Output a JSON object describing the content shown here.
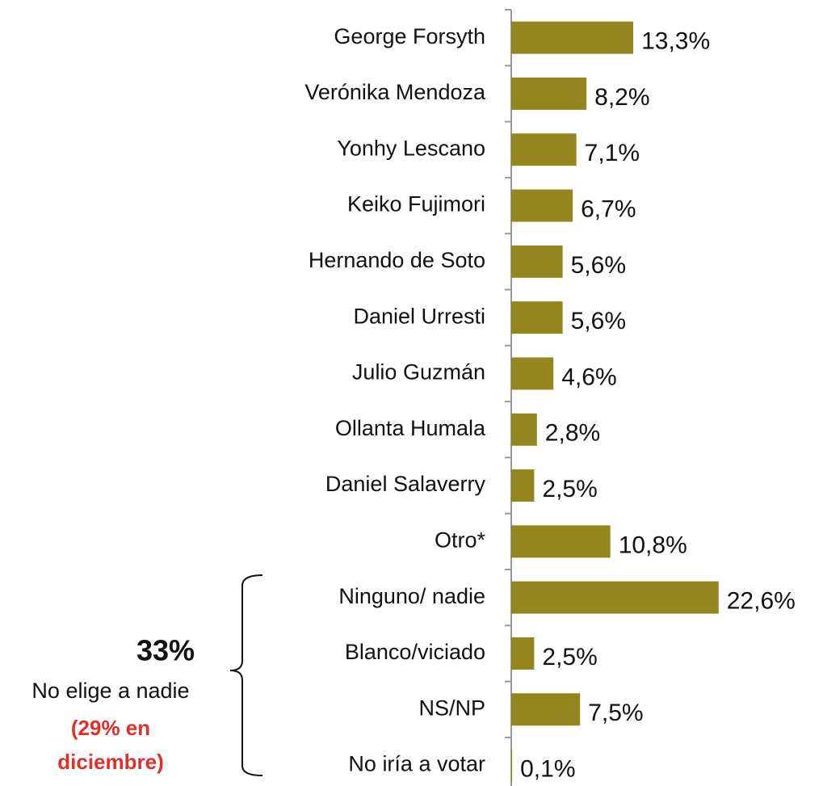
{
  "chart_data": {
    "type": "hbar",
    "categories": [
      "George Forsyth",
      "Verónika Mendoza",
      "Yonhy Lescano",
      "Keiko Fujimori",
      "Hernando de Soto",
      "Daniel Urresti",
      "Julio Guzmán",
      "Ollanta Humala",
      "Daniel Salaverry",
      "Otro*",
      "Ninguno/ nadie",
      "Blanco/viciado",
      "NS/NP",
      "No iría a votar"
    ],
    "values": [
      13.3,
      8.2,
      7.1,
      6.7,
      5.6,
      5.6,
      4.6,
      2.8,
      2.5,
      10.8,
      22.6,
      2.5,
      7.5,
      0.1
    ],
    "value_labels": [
      "13,3%",
      "8,2%",
      "7,1%",
      "6,7%",
      "5,6%",
      "5,6%",
      "4,6%",
      "2,8%",
      "2,5%",
      "10,8%",
      "22,6%",
      "2,5%",
      "7,5%",
      "0,1%"
    ],
    "color": "#93861e",
    "xlim": [
      0,
      25
    ],
    "annotation": {
      "value": "33%",
      "text": "No elige a nadie",
      "note": [
        "(29% en",
        "diciembre)"
      ],
      "note_color": "#e0302a"
    }
  }
}
